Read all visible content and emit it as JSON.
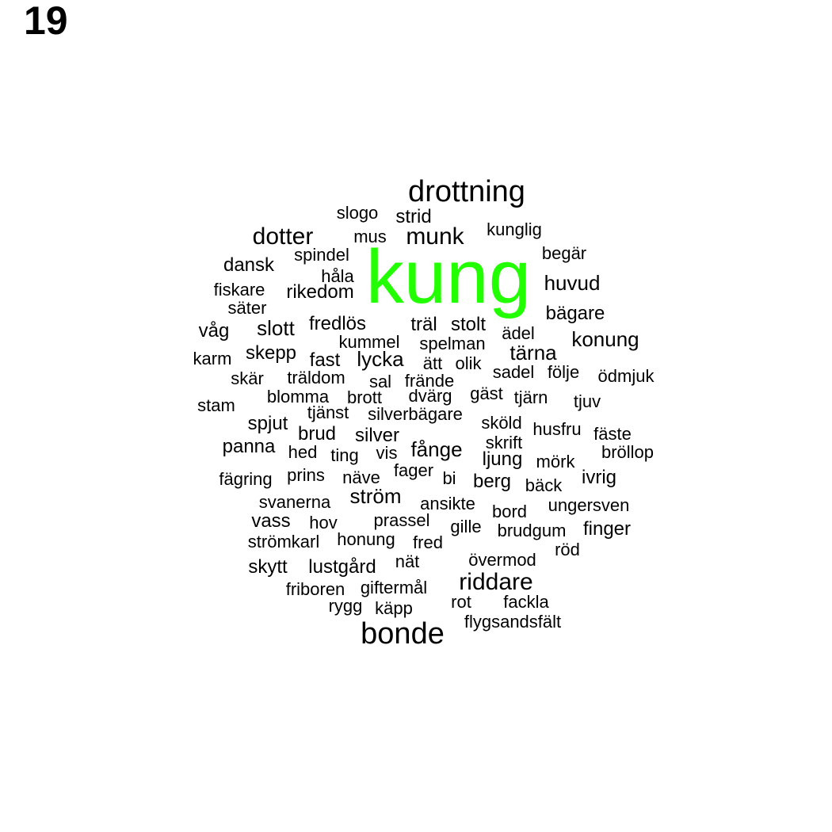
{
  "panel_number": "19",
  "highlight_color": "#22ff00",
  "text_color": "#000000",
  "highlighted_word": "kung",
  "words": [
    {
      "text": "kung",
      "weight": 20
    },
    {
      "text": "drottning",
      "weight": 5
    },
    {
      "text": "bonde",
      "weight": 5
    },
    {
      "text": "dotter",
      "weight": 4
    },
    {
      "text": "munk",
      "weight": 4
    },
    {
      "text": "riddare",
      "weight": 4
    },
    {
      "text": "huvud",
      "weight": 3
    },
    {
      "text": "tärna",
      "weight": 3
    },
    {
      "text": "konung",
      "weight": 3
    },
    {
      "text": "bägare",
      "weight": 3
    },
    {
      "text": "slott",
      "weight": 3
    },
    {
      "text": "lycka",
      "weight": 3
    },
    {
      "text": "ström",
      "weight": 3
    },
    {
      "text": "fånge",
      "weight": 3
    },
    {
      "text": "strid",
      "weight": 2
    },
    {
      "text": "dansk",
      "weight": 2
    },
    {
      "text": "rikedom",
      "weight": 2
    },
    {
      "text": "våg",
      "weight": 2
    },
    {
      "text": "fredlös",
      "weight": 2
    },
    {
      "text": "träl",
      "weight": 2
    },
    {
      "text": "stolt",
      "weight": 2
    },
    {
      "text": "skepp",
      "weight": 2
    },
    {
      "text": "fast",
      "weight": 2
    },
    {
      "text": "spjut",
      "weight": 2
    },
    {
      "text": "brud",
      "weight": 2
    },
    {
      "text": "silver",
      "weight": 2
    },
    {
      "text": "ljung",
      "weight": 2
    },
    {
      "text": "berg",
      "weight": 2
    },
    {
      "text": "vass",
      "weight": 2
    },
    {
      "text": "skytt",
      "weight": 2
    },
    {
      "text": "lustgård",
      "weight": 2
    },
    {
      "text": "panna",
      "weight": 2
    },
    {
      "text": "skär",
      "weight": 2
    },
    {
      "text": "finger",
      "weight": 2
    },
    {
      "text": "ivrig",
      "weight": 2
    },
    {
      "text": "slogo",
      "weight": 1
    },
    {
      "text": "mus",
      "weight": 1
    },
    {
      "text": "kunglig",
      "weight": 1
    },
    {
      "text": "spindel",
      "weight": 1
    },
    {
      "text": "begär",
      "weight": 1
    },
    {
      "text": "håla",
      "weight": 1
    },
    {
      "text": "fiskare",
      "weight": 1
    },
    {
      "text": "säter",
      "weight": 1
    },
    {
      "text": "ädel",
      "weight": 1
    },
    {
      "text": "kummel",
      "weight": 1
    },
    {
      "text": "spelman",
      "weight": 1
    },
    {
      "text": "karm",
      "weight": 1
    },
    {
      "text": "ätt",
      "weight": 1
    },
    {
      "text": "olik",
      "weight": 1
    },
    {
      "text": "sadel",
      "weight": 1
    },
    {
      "text": "följe",
      "weight": 1
    },
    {
      "text": "ödmjuk",
      "weight": 1
    },
    {
      "text": "träldom",
      "weight": 1
    },
    {
      "text": "sal",
      "weight": 1
    },
    {
      "text": "frände",
      "weight": 1
    },
    {
      "text": "gäst",
      "weight": 1
    },
    {
      "text": "blomma",
      "weight": 1
    },
    {
      "text": "brott",
      "weight": 1
    },
    {
      "text": "dvärg",
      "weight": 1
    },
    {
      "text": "tjärn",
      "weight": 1
    },
    {
      "text": "tjuv",
      "weight": 1
    },
    {
      "text": "stam",
      "weight": 1
    },
    {
      "text": "tjänst",
      "weight": 1
    },
    {
      "text": "silverbägare",
      "weight": 1
    },
    {
      "text": "sköld",
      "weight": 1
    },
    {
      "text": "husfru",
      "weight": 1
    },
    {
      "text": "fäste",
      "weight": 1
    },
    {
      "text": "skrift",
      "weight": 1
    },
    {
      "text": "bröllop",
      "weight": 1
    },
    {
      "text": "hed",
      "weight": 1
    },
    {
      "text": "ting",
      "weight": 1
    },
    {
      "text": "vis",
      "weight": 1
    },
    {
      "text": "mörk",
      "weight": 1
    },
    {
      "text": "fager",
      "weight": 1
    },
    {
      "text": "fägring",
      "weight": 1
    },
    {
      "text": "prins",
      "weight": 1
    },
    {
      "text": "näve",
      "weight": 1
    },
    {
      "text": "bi",
      "weight": 1
    },
    {
      "text": "bäck",
      "weight": 1
    },
    {
      "text": "svanerna",
      "weight": 1
    },
    {
      "text": "ansikte",
      "weight": 1
    },
    {
      "text": "bord",
      "weight": 1
    },
    {
      "text": "ungersven",
      "weight": 1
    },
    {
      "text": "hov",
      "weight": 1
    },
    {
      "text": "prassel",
      "weight": 1
    },
    {
      "text": "gille",
      "weight": 1
    },
    {
      "text": "brudgum",
      "weight": 1
    },
    {
      "text": "strömkarl",
      "weight": 1
    },
    {
      "text": "honung",
      "weight": 1
    },
    {
      "text": "fred",
      "weight": 1
    },
    {
      "text": "röd",
      "weight": 1
    },
    {
      "text": "nät",
      "weight": 1
    },
    {
      "text": "övermod",
      "weight": 1
    },
    {
      "text": "friboren",
      "weight": 1
    },
    {
      "text": "giftermål",
      "weight": 1
    },
    {
      "text": "rygg",
      "weight": 1
    },
    {
      "text": "käpp",
      "weight": 1
    },
    {
      "text": "rot",
      "weight": 1
    },
    {
      "text": "fackla",
      "weight": 1
    },
    {
      "text": "flygsandsfält",
      "weight": 1
    }
  ]
}
